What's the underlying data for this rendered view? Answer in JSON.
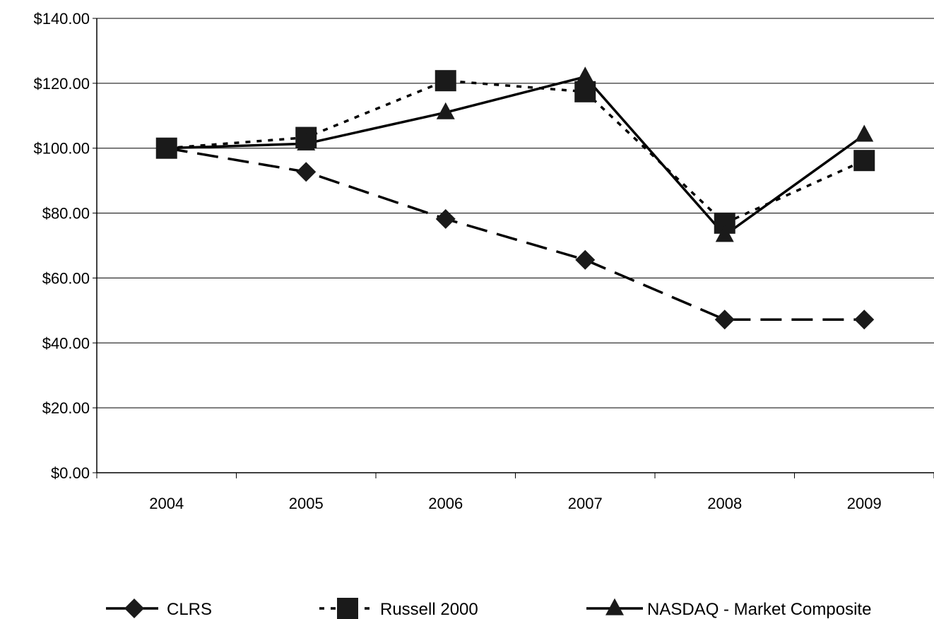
{
  "chart_data": {
    "type": "line",
    "title": "",
    "xlabel": "",
    "ylabel": "",
    "categories": [
      "2004",
      "2005",
      "2006",
      "2007",
      "2008",
      "2009"
    ],
    "ylim": [
      0,
      140
    ],
    "yticks": [
      0,
      20,
      40,
      60,
      80,
      100,
      120,
      140
    ],
    "ytick_labels": [
      "$0.00",
      "$20.00",
      "$40.00",
      "$60.00",
      "$80.00",
      "$100.00",
      "$120.00",
      "$140.00"
    ],
    "grid": "horizontal",
    "legend_position": "bottom",
    "series": [
      {
        "name": "CLRS",
        "values": [
          100,
          92.7,
          78.2,
          65.6,
          47.2,
          47.2
        ],
        "marker": "diamond",
        "line_style": "long-dash",
        "color": "#000000"
      },
      {
        "name": "Russell 2000",
        "values": [
          100,
          103.3,
          120.8,
          117.4,
          76.9,
          96.2
        ],
        "marker": "square",
        "line_style": "dotted",
        "color": "#000000"
      },
      {
        "name": "NASDAQ - Market Composite",
        "values": [
          100,
          101.4,
          111.0,
          122.0,
          73.2,
          104.1
        ],
        "marker": "triangle",
        "line_style": "solid",
        "color": "#000000"
      }
    ]
  }
}
